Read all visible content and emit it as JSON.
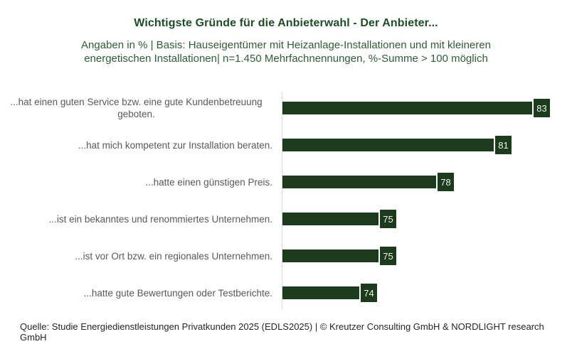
{
  "header": {
    "title": "Wichtigste Gründe für die Anbieterwahl - Der Anbieter...",
    "subtitle_line1": "Angaben in % | Basis: Hauseigentümer mit Heizanlage-Installationen und mit kleineren",
    "subtitle_line2": "energetischen Installationen| n=1.450 Mehrfachnennungen, %-Summe > 100 möglich"
  },
  "chart_data": {
    "type": "bar",
    "orientation": "horizontal",
    "title": "Wichtigste Gründe für die Anbieterwahl - Der Anbieter...",
    "subtitle": "Angaben in % | Basis: Hauseigentümer mit Heizanlage-Installationen und mit kleineren energetischen Installationen| n=1.450 Mehrfachnennungen, %-Summe > 100 möglich",
    "categories": [
      "...hat einen guten Service bzw. eine gute Kundenbetreuung geboten.",
      "...hat mich kompetent zur Installation beraten.",
      "...hatte einen günstigen Preis.",
      "...ist ein bekanntes und renommiertes Unternehmen.",
      "...ist vor Ort bzw. ein regionales Unternehmen.",
      "...hatte gute Bewertungen oder Testberichte."
    ],
    "values": [
      83,
      81,
      78,
      75,
      75,
      74
    ],
    "unit": "%",
    "xlabel": "",
    "ylabel": "",
    "xlim": [
      70,
      96
    ],
    "grid": false,
    "legend": "none",
    "value_labels": "on-bar-end-badges",
    "bar_color": "#1b3b1c",
    "value_label_color": "#f4f4ef",
    "category_label_color": "#595959",
    "axis_line_color": "#d9d9d9",
    "title_color": "#1e4d26",
    "subtitle_color": "#2f5d35"
  },
  "footer": {
    "source": "Quelle: Studie Energiedienstleistungen Privatkunden 2025 (EDLS2025) | © Kreutzer Consulting GmbH & NORDLIGHT research GmbH"
  }
}
